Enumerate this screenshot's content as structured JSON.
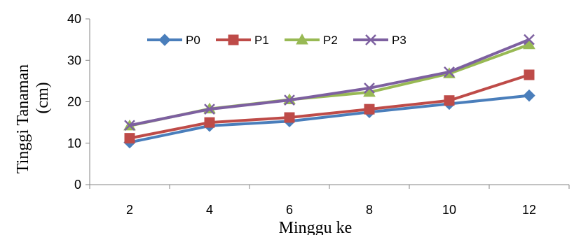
{
  "chart_data": {
    "type": "line",
    "title": "",
    "xlabel": "Minggu ke",
    "ylabel_lines": [
      "Tinggi Tanaman",
      "(cm)"
    ],
    "categories": [
      "2",
      "4",
      "6",
      "8",
      "10",
      "12"
    ],
    "ylim": [
      0,
      40
    ],
    "yticks": [
      0,
      10,
      20,
      30,
      40
    ],
    "grid": false,
    "legend_position": "top",
    "series": [
      {
        "name": "P0",
        "color": "#4a7ebb",
        "marker": "diamond",
        "values": [
          10.2,
          14.2,
          15.3,
          17.5,
          19.5,
          21.5
        ]
      },
      {
        "name": "P1",
        "color": "#be4b48",
        "marker": "square",
        "values": [
          11.2,
          15.0,
          16.2,
          18.2,
          20.3,
          26.5
        ]
      },
      {
        "name": "P2",
        "color": "#98b954",
        "marker": "triangle",
        "values": [
          14.2,
          18.3,
          20.5,
          22.3,
          26.8,
          33.8
        ]
      },
      {
        "name": "P3",
        "color": "#7d60a0",
        "marker": "x",
        "values": [
          14.3,
          18.2,
          20.4,
          23.3,
          27.2,
          35.0
        ]
      }
    ]
  }
}
